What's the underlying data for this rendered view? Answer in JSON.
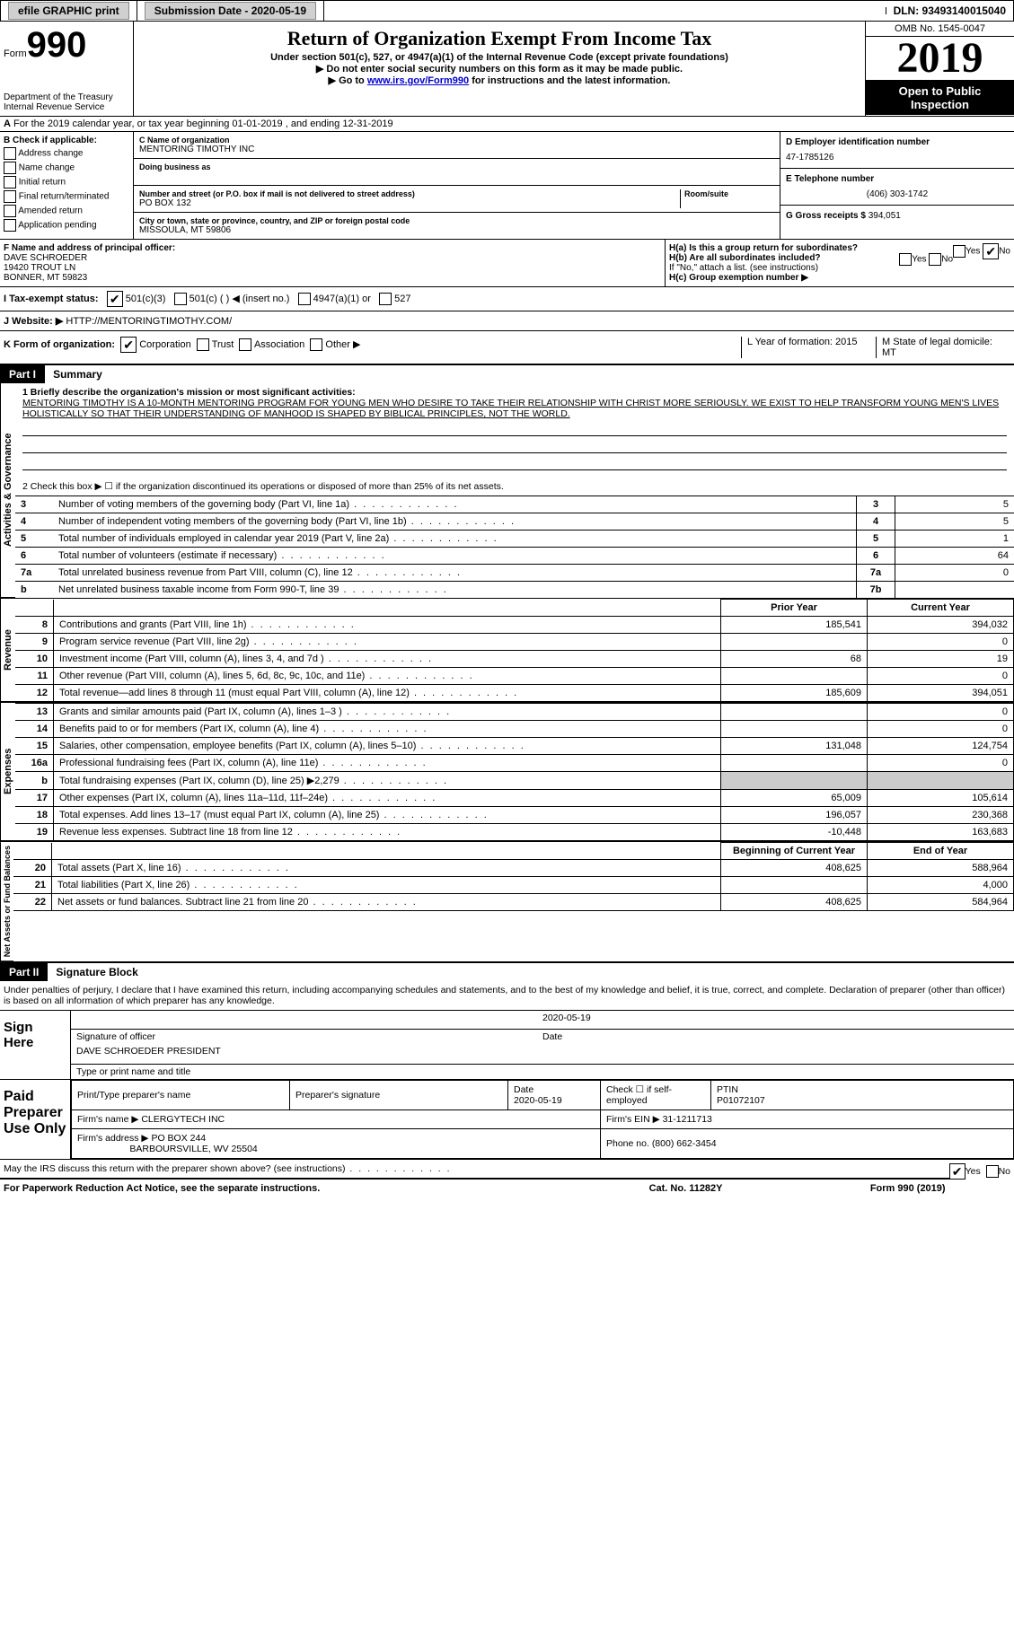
{
  "topbar": {
    "efile": "efile GRAPHIC print",
    "submission": "Submission Date - 2020-05-19",
    "dln": "DLN: 93493140015040"
  },
  "header": {
    "form_label": "Form",
    "form_num": "990",
    "title": "Return of Organization Exempt From Income Tax",
    "sub1": "Under section 501(c), 527, or 4947(a)(1) of the Internal Revenue Code (except private foundations)",
    "sub2": "▶ Do not enter social security numbers on this form as it may be made public.",
    "sub3_prefix": "▶ Go to ",
    "sub3_link": "www.irs.gov/Form990",
    "sub3_suffix": " for instructions and the latest information.",
    "dept": "Department of the Treasury\nInternal Revenue Service",
    "omb": "OMB No. 1545-0047",
    "year": "2019",
    "inspection": "Open to Public Inspection"
  },
  "row_a": "For the 2019 calendar year, or tax year beginning 01-01-2019   , and ending 12-31-2019",
  "col_b": {
    "title": "B Check if applicable:",
    "items": [
      "Address change",
      "Name change",
      "Initial return",
      "Final return/terminated",
      "Amended return",
      "Application pending"
    ]
  },
  "col_c": {
    "name_lbl": "C Name of organization",
    "name": "MENTORING TIMOTHY INC",
    "dba_lbl": "Doing business as",
    "addr_lbl": "Number and street (or P.O. box if mail is not delivered to street address)",
    "room_lbl": "Room/suite",
    "addr": "PO BOX 132",
    "city_lbl": "City or town, state or province, country, and ZIP or foreign postal code",
    "city": "MISSOULA, MT  59806"
  },
  "col_d": {
    "ein_lbl": "D Employer identification number",
    "ein": "47-1785126",
    "tel_lbl": "E Telephone number",
    "tel": "(406) 303-1742",
    "gross_lbl": "G Gross receipts $",
    "gross": "394,051"
  },
  "row_f": {
    "lbl": "F  Name and address of principal officer:",
    "name": "DAVE SCHROEDER",
    "addr1": "19420 TROUT LN",
    "addr2": "BONNER, MT  59823"
  },
  "row_h": {
    "ha": "H(a)  Is this a group return for subordinates?",
    "hb": "H(b)  Are all subordinates included?",
    "hb_note": "If \"No,\" attach a list. (see instructions)",
    "hc": "H(c)  Group exemption number ▶",
    "yes": "Yes",
    "no": "No"
  },
  "row_i": {
    "lbl": "I   Tax-exempt status:",
    "o1": "501(c)(3)",
    "o2": "501(c) (  ) ◀ (insert no.)",
    "o3": "4947(a)(1) or",
    "o4": "527"
  },
  "row_j": {
    "lbl": "J   Website: ▶",
    "val": "HTTP://MENTORINGTIMOTHY.COM/"
  },
  "row_k": {
    "lbl": "K Form of organization:",
    "o1": "Corporation",
    "o2": "Trust",
    "o3": "Association",
    "o4": "Other ▶",
    "l": "L Year of formation: 2015",
    "m": "M State of legal domicile: MT"
  },
  "part1": {
    "tag": "Part I",
    "title": "Summary",
    "q1_lbl": "1  Briefly describe the organization's mission or most significant activities:",
    "mission": "MENTORING TIMOTHY IS A 10-MONTH MENTORING PROGRAM FOR YOUNG MEN WHO DESIRE TO TAKE THEIR RELATIONSHIP WITH CHRIST MORE SERIOUSLY. WE EXIST TO HELP TRANSFORM YOUNG MEN'S LIVES HOLISTICALLY SO THAT THEIR UNDERSTANDING OF MANHOOD IS SHAPED BY BIBLICAL PRINCIPLES, NOT THE WORLD.",
    "q2": "2   Check this box ▶ ☐  if the organization discontinued its operations or disposed of more than 25% of its net assets.",
    "vert_ag": "Activities & Governance",
    "rows_num": [
      {
        "n": "3",
        "d": "Number of voting members of the governing body (Part VI, line 1a)",
        "box": "3",
        "v": "5"
      },
      {
        "n": "4",
        "d": "Number of independent voting members of the governing body (Part VI, line 1b)",
        "box": "4",
        "v": "5"
      },
      {
        "n": "5",
        "d": "Total number of individuals employed in calendar year 2019 (Part V, line 2a)",
        "box": "5",
        "v": "1"
      },
      {
        "n": "6",
        "d": "Total number of volunteers (estimate if necessary)",
        "box": "6",
        "v": "64"
      },
      {
        "n": "7a",
        "d": "Total unrelated business revenue from Part VIII, column (C), line 12",
        "box": "7a",
        "v": "0"
      },
      {
        "n": "b",
        "d": "Net unrelated business taxable income from Form 990-T, line 39",
        "box": "7b",
        "v": ""
      }
    ],
    "prior": "Prior Year",
    "current": "Current Year",
    "vert_rev": "Revenue",
    "revenue": [
      {
        "n": "8",
        "d": "Contributions and grants (Part VIII, line 1h)",
        "p": "185,541",
        "c": "394,032"
      },
      {
        "n": "9",
        "d": "Program service revenue (Part VIII, line 2g)",
        "p": "",
        "c": "0"
      },
      {
        "n": "10",
        "d": "Investment income (Part VIII, column (A), lines 3, 4, and 7d )",
        "p": "68",
        "c": "19"
      },
      {
        "n": "11",
        "d": "Other revenue (Part VIII, column (A), lines 5, 6d, 8c, 9c, 10c, and 11e)",
        "p": "",
        "c": "0"
      },
      {
        "n": "12",
        "d": "Total revenue—add lines 8 through 11 (must equal Part VIII, column (A), line 12)",
        "p": "185,609",
        "c": "394,051"
      }
    ],
    "vert_exp": "Expenses",
    "expenses": [
      {
        "n": "13",
        "d": "Grants and similar amounts paid (Part IX, column (A), lines 1–3 )",
        "p": "",
        "c": "0"
      },
      {
        "n": "14",
        "d": "Benefits paid to or for members (Part IX, column (A), line 4)",
        "p": "",
        "c": "0"
      },
      {
        "n": "15",
        "d": "Salaries, other compensation, employee benefits (Part IX, column (A), lines 5–10)",
        "p": "131,048",
        "c": "124,754"
      },
      {
        "n": "16a",
        "d": "Professional fundraising fees (Part IX, column (A), line 11e)",
        "p": "",
        "c": "0"
      },
      {
        "n": "b",
        "d": "Total fundraising expenses (Part IX, column (D), line 25) ▶2,279",
        "p": "shade",
        "c": "shade"
      },
      {
        "n": "17",
        "d": "Other expenses (Part IX, column (A), lines 11a–11d, 11f–24e)",
        "p": "65,009",
        "c": "105,614"
      },
      {
        "n": "18",
        "d": "Total expenses. Add lines 13–17 (must equal Part IX, column (A), line 25)",
        "p": "196,057",
        "c": "230,368"
      },
      {
        "n": "19",
        "d": "Revenue less expenses. Subtract line 18 from line 12",
        "p": "-10,448",
        "c": "163,683"
      }
    ],
    "vert_na": "Net Assets or Fund Balances",
    "boy": "Beginning of Current Year",
    "eoy": "End of Year",
    "netassets": [
      {
        "n": "20",
        "d": "Total assets (Part X, line 16)",
        "p": "408,625",
        "c": "588,964"
      },
      {
        "n": "21",
        "d": "Total liabilities (Part X, line 26)",
        "p": "",
        "c": "4,000"
      },
      {
        "n": "22",
        "d": "Net assets or fund balances. Subtract line 21 from line 20",
        "p": "408,625",
        "c": "584,964"
      }
    ]
  },
  "part2": {
    "tag": "Part II",
    "title": "Signature Block",
    "declaration": "Under penalties of perjury, I declare that I have examined this return, including accompanying schedules and statements, and to the best of my knowledge and belief, it is true, correct, and complete. Declaration of preparer (other than officer) is based on all information of which preparer has any knowledge.",
    "sign_here": "Sign Here",
    "sig_officer": "Signature of officer",
    "sig_date": "2020-05-19",
    "date_lbl": "Date",
    "officer_name": "DAVE SCHROEDER PRESIDENT",
    "name_title_lbl": "Type or print name and title",
    "paid_lbl": "Paid Preparer Use Only",
    "prep_name_lbl": "Print/Type preparer's name",
    "prep_sig_lbl": "Preparer's signature",
    "prep_date_lbl": "Date",
    "prep_date": "2020-05-19",
    "check_if": "Check ☐ if self-employed",
    "ptin_lbl": "PTIN",
    "ptin": "P01072107",
    "firm_name_lbl": "Firm's name   ▶",
    "firm_name": "CLERGYTECH INC",
    "firm_ein_lbl": "Firm's EIN ▶",
    "firm_ein": "31-1211713",
    "firm_addr_lbl": "Firm's address ▶",
    "firm_addr": "PO BOX 244",
    "firm_addr2": "BARBOURSVILLE, WV  25504",
    "phone_lbl": "Phone no.",
    "phone": "(800) 662-3454",
    "discuss": "May the IRS discuss this return with the preparer shown above? (see instructions)",
    "yes": "Yes",
    "no": "No"
  },
  "footer": {
    "left": "For Paperwork Reduction Act Notice, see the separate instructions.",
    "mid": "Cat. No. 11282Y",
    "right": "Form 990 (2019)"
  }
}
